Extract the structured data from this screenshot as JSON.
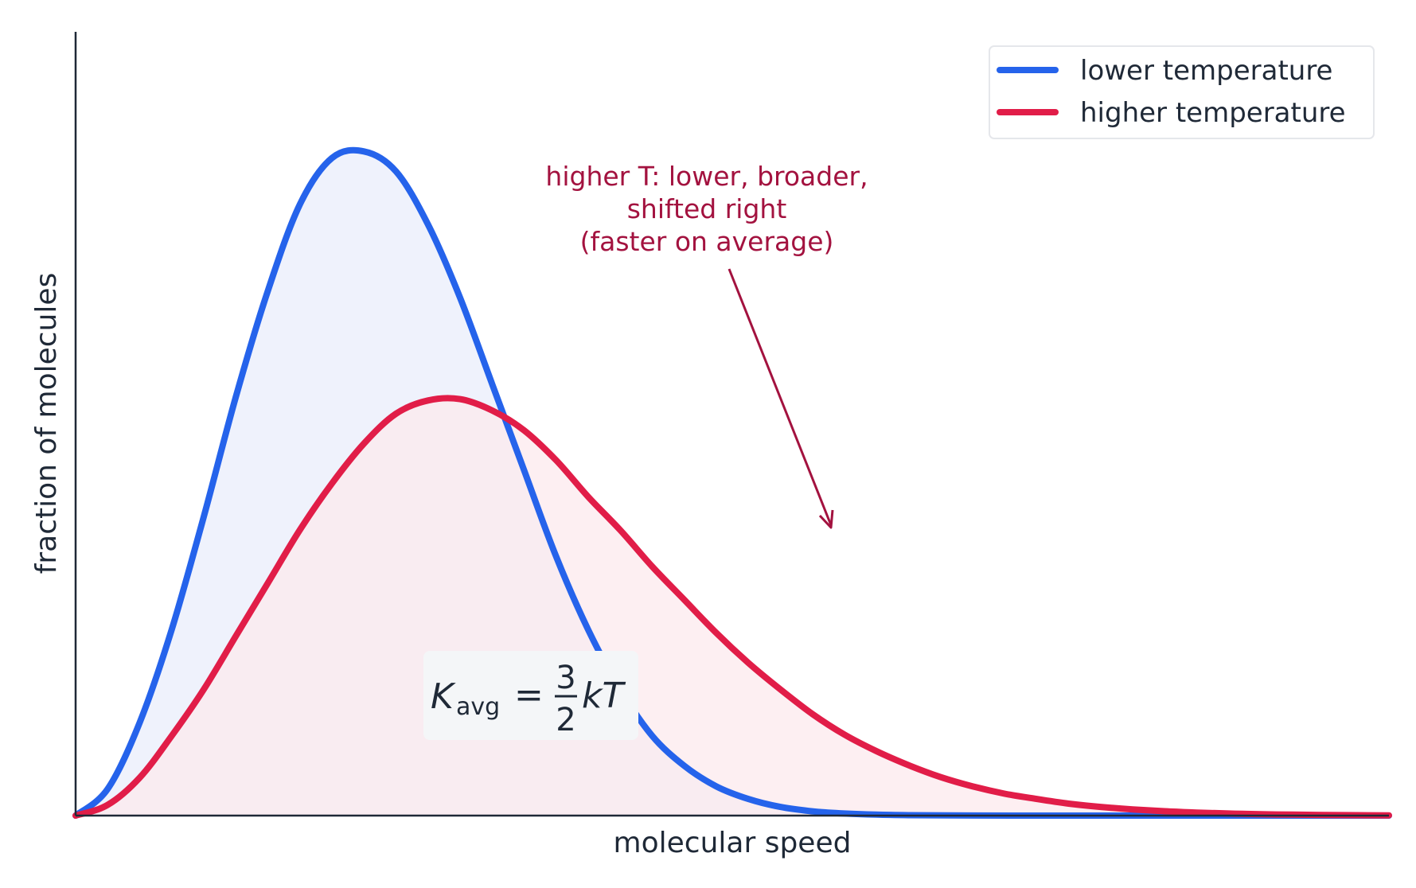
{
  "chart_data": {
    "type": "line",
    "title": "",
    "xlabel": "molecular speed",
    "ylabel": "fraction of molecules",
    "xlim": [
      0,
      4.1
    ],
    "ylim": [
      0,
      1.18
    ],
    "ticks": "none",
    "grid": false,
    "legend_position": "top-right",
    "series": [
      {
        "name": "lower temperature",
        "color": "#2563eb",
        "fill": "#eaeefb",
        "x": [
          0,
          0.1,
          0.2,
          0.3,
          0.4,
          0.5,
          0.6,
          0.7,
          0.8,
          0.9,
          1.0,
          1.1,
          1.2,
          1.3,
          1.4,
          1.5,
          1.6,
          1.7,
          1.8,
          1.9,
          2.0,
          2.1,
          2.2,
          2.3,
          2.4,
          2.5,
          2.6,
          2.8,
          3.0,
          3.2,
          3.4,
          3.6,
          3.8,
          4.0,
          4.1
        ],
        "y": [
          0,
          0.04,
          0.14,
          0.28,
          0.45,
          0.63,
          0.79,
          0.92,
          0.99,
          1.0,
          0.97,
          0.89,
          0.78,
          0.65,
          0.52,
          0.39,
          0.28,
          0.19,
          0.12,
          0.075,
          0.044,
          0.025,
          0.013,
          0.0065,
          0.0031,
          0.0014,
          0.0006,
          0.0001,
          0,
          0,
          0,
          0,
          0,
          0,
          0
        ]
      },
      {
        "name": "higher temperature",
        "color": "#e11d48",
        "fill": "#fceaee",
        "x": [
          0,
          0.1,
          0.2,
          0.3,
          0.4,
          0.5,
          0.6,
          0.7,
          0.8,
          0.9,
          1.0,
          1.1,
          1.2,
          1.3,
          1.4,
          1.5,
          1.6,
          1.7,
          1.8,
          1.9,
          2.0,
          2.1,
          2.2,
          2.3,
          2.4,
          2.5,
          2.6,
          2.7,
          2.8,
          2.9,
          3.0,
          3.1,
          3.2,
          3.3,
          3.4,
          3.5,
          3.6,
          3.7,
          3.8,
          3.9,
          4.0,
          4.1
        ],
        "y": [
          0,
          0.016,
          0.057,
          0.12,
          0.19,
          0.27,
          0.35,
          0.43,
          0.5,
          0.56,
          0.605,
          0.625,
          0.627,
          0.61,
          0.58,
          0.535,
          0.48,
          0.43,
          0.375,
          0.325,
          0.275,
          0.23,
          0.19,
          0.153,
          0.122,
          0.097,
          0.076,
          0.058,
          0.044,
          0.033,
          0.025,
          0.018,
          0.013,
          0.0094,
          0.0066,
          0.0046,
          0.0031,
          0.0021,
          0.0014,
          0.0009,
          0.0006,
          0.0004
        ]
      }
    ],
    "annotations": [
      {
        "lines": [
          "higher T: lower, broader,",
          "shifted right",
          "(faster on average)"
        ],
        "arrow_to": {
          "x": 2.35,
          "y": 0.43
        },
        "color": "#a3123f"
      }
    ],
    "formula": {
      "main": "K",
      "sub": "avg",
      "equals": "=",
      "numerator": "3",
      "denominator": "2",
      "tail": "kT"
    }
  }
}
